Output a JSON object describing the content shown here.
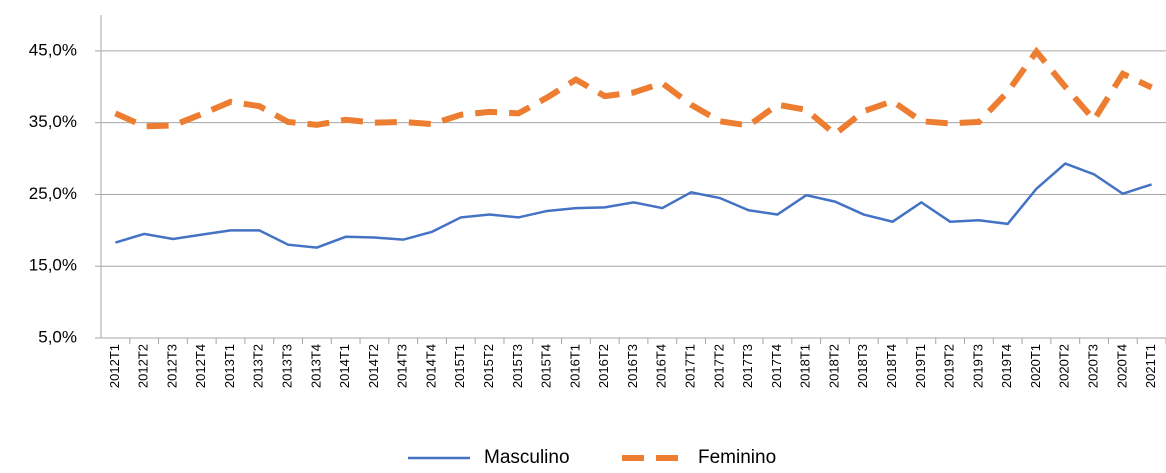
{
  "chart_data": {
    "type": "line",
    "categories": [
      "2012T1",
      "2012T2",
      "2012T3",
      "2012T4",
      "2013T1",
      "2013T2",
      "2013T3",
      "2013T4",
      "2014T1",
      "2014T2",
      "2014T3",
      "2014T4",
      "2015T1",
      "2015T2",
      "2015T3",
      "2015T4",
      "2016T1",
      "2016T2",
      "2016T3",
      "2016T4",
      "2017T1",
      "2017T2",
      "2017T3",
      "2017T4",
      "2018T1",
      "2018T2",
      "2018T3",
      "2018T4",
      "2019T1",
      "2019T2",
      "2019T3",
      "2019T4",
      "2020T1",
      "2020T2",
      "2020T3",
      "2020T4",
      "2021T1"
    ],
    "series": [
      {
        "name": "Masculino",
        "color": "#4472c4",
        "dashed": false,
        "values": [
          18.3,
          19.5,
          18.8,
          19.4,
          20.0,
          20.0,
          18.0,
          17.6,
          19.1,
          19.0,
          18.7,
          19.8,
          21.8,
          22.2,
          21.8,
          22.7,
          23.1,
          23.2,
          23.9,
          23.1,
          25.3,
          24.5,
          22.8,
          22.2,
          24.9,
          24.0,
          22.2,
          21.2,
          23.9,
          21.2,
          21.4,
          20.9,
          25.8,
          29.3,
          27.8,
          25.1,
          26.4
        ]
      },
      {
        "name": "Feminino",
        "color": "#ed7d31",
        "dashed": true,
        "values": [
          36.3,
          34.5,
          34.6,
          36.2,
          37.9,
          37.3,
          35.1,
          34.7,
          35.4,
          35.0,
          35.1,
          34.8,
          36.1,
          36.5,
          36.3,
          38.5,
          41.0,
          38.7,
          39.2,
          40.5,
          37.5,
          35.2,
          34.6,
          37.5,
          36.8,
          33.4,
          36.6,
          38.0,
          35.2,
          34.9,
          35.1,
          39.3,
          44.9,
          40.0,
          35.4,
          41.8,
          39.9
        ]
      }
    ],
    "ylim": [
      5,
      50
    ],
    "yticks": [
      {
        "value": 5,
        "label": "5,0%"
      },
      {
        "value": 15,
        "label": "15,0%"
      },
      {
        "value": 25,
        "label": "25,0%"
      },
      {
        "value": 35,
        "label": "35,0%"
      },
      {
        "value": 45,
        "label": "45,0%"
      }
    ],
    "grid": true,
    "legend": "bottom"
  }
}
